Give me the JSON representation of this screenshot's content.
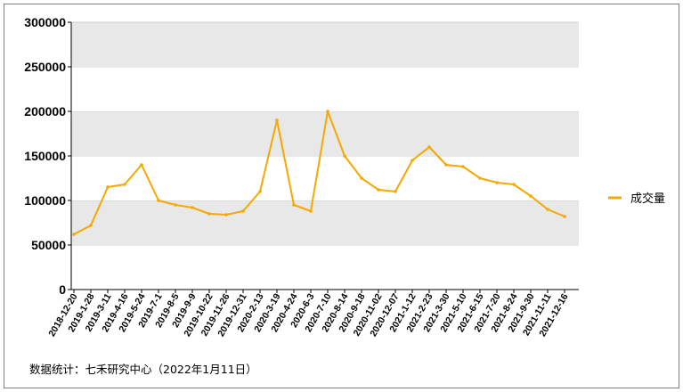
{
  "chart_data": {
    "type": "line",
    "title": "",
    "xlabel": "",
    "ylabel": "",
    "ylim": [
      0,
      300000
    ],
    "yticks": [
      0,
      50000,
      100000,
      150000,
      200000,
      250000,
      300000
    ],
    "ytick_labels": [
      "0",
      "50000",
      "100000",
      "150000",
      "200000",
      "250000",
      "300000"
    ],
    "grid": "horizontal bands (alternating light grey)",
    "legend_position": "right",
    "series_color": "#f5a800",
    "x_tick_labels": [
      "2018-12-20",
      "2019-1-28",
      "2019-3-11",
      "2019-4-16",
      "2019-5-24",
      "2019-7-1",
      "2019-8-5",
      "2019-9-9",
      "2019-10-22",
      "2019-11-26",
      "2019-12-31",
      "2020-2-13",
      "2020-3-19",
      "2020-4-24",
      "2020-6-3",
      "2020-7-10",
      "2020-8-14",
      "2020-9-18",
      "2020-11-02",
      "2020-12-07",
      "2021-1-12",
      "2021-2-23",
      "2021-3-30",
      "2021-5-10",
      "2021-6-15",
      "2021-7-20",
      "2021-8-24",
      "2021-9-30",
      "2021-11-11",
      "2021-12-16"
    ],
    "series": [
      {
        "name": "成交量",
        "x": [
          "2018-12-20",
          "2019-1-28",
          "2019-3-11",
          "2019-4-16",
          "2019-5-24",
          "2019-7-1",
          "2019-8-5",
          "2019-9-9",
          "2019-10-22",
          "2019-11-26",
          "2019-12-31",
          "2020-2-13",
          "2020-3-19",
          "2020-4-24",
          "2020-6-3",
          "2020-7-10",
          "2020-8-14",
          "2020-9-18",
          "2020-11-02",
          "2020-12-07",
          "2021-1-12",
          "2021-2-23",
          "2021-3-30",
          "2021-5-10",
          "2021-6-15",
          "2021-7-20",
          "2021-8-24",
          "2021-9-30",
          "2021-11-11",
          "2021-12-16"
        ],
        "values": [
          62000,
          72000,
          115000,
          118000,
          140000,
          100000,
          95000,
          92000,
          85000,
          84000,
          88000,
          110000,
          190000,
          95000,
          88000,
          200000,
          150000,
          125000,
          112000,
          110000,
          145000,
          160000,
          140000,
          138000,
          125000,
          120000,
          118000,
          105000,
          90000,
          82000
        ]
      }
    ]
  },
  "legend": {
    "label": "成交量"
  },
  "source_note": "数据统计：七禾研究中心（2022年1月11日）"
}
